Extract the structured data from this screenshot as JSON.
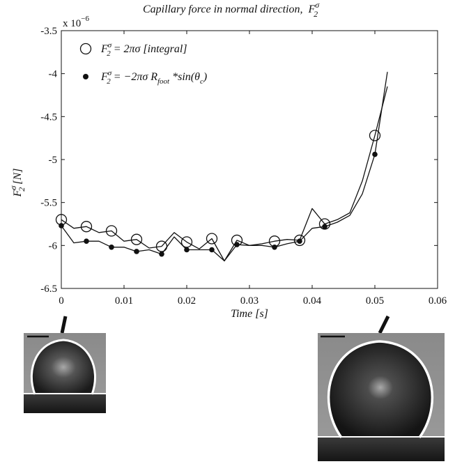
{
  "chart_data": {
    "type": "line",
    "title": "Capillary force in normal direction,",
    "title_symbol": {
      "main": "F",
      "sup": "σ",
      "sub": "2"
    },
    "xlabel": "Time [s]",
    "ylabel": {
      "main": "F",
      "sup": "σ",
      "sub": "2",
      "rest": " [N]"
    },
    "y_exponent": "x 10",
    "y_exponent_power": "−6",
    "xlim": [
      0,
      0.06
    ],
    "ylim": [
      -6.5,
      -3.5
    ],
    "x_ticks": [
      0,
      0.01,
      0.02,
      0.03,
      0.04,
      0.05,
      0.06
    ],
    "x_tick_labels": [
      "0",
      "0.01",
      "0.02",
      "0.03",
      "0.04",
      "0.05",
      "0.06"
    ],
    "y_ticks": [
      -6.5,
      -6,
      -5.5,
      -5,
      -4.5,
      -4,
      -3.5
    ],
    "y_tick_labels": [
      "-6.5",
      "-6",
      "-5.5",
      "-5",
      "-4.5",
      "-4",
      "-3.5"
    ],
    "grid": false,
    "legend_position": "top-left",
    "series": [
      {
        "name": "integral",
        "legend_text": {
          "lhs": "F",
          "sup": "σ",
          "sub": "2",
          "rhs": " = 2πσ [integral]"
        },
        "marker": "open-circle",
        "color": "#111111",
        "line_x": [
          0,
          0.002,
          0.004,
          0.006,
          0.008,
          0.01,
          0.012,
          0.014,
          0.016,
          0.018,
          0.02,
          0.022,
          0.024,
          0.026,
          0.028,
          0.03,
          0.032,
          0.034,
          0.036,
          0.038,
          0.04,
          0.042,
          0.044,
          0.046,
          0.048,
          0.05,
          0.052
        ],
        "line_y": [
          -5.7,
          -5.8,
          -5.78,
          -5.85,
          -5.83,
          -5.95,
          -5.93,
          -6.03,
          -6.01,
          -5.85,
          -5.96,
          -6.04,
          -5.92,
          -6.18,
          -5.94,
          -6.0,
          -5.98,
          -5.95,
          -5.93,
          -5.94,
          -5.57,
          -5.75,
          -5.7,
          -5.62,
          -5.25,
          -4.72,
          -4.15
        ],
        "marker_x": [
          0,
          0.004,
          0.008,
          0.012,
          0.016,
          0.02,
          0.024,
          0.028,
          0.034,
          0.038,
          0.042,
          0.05
        ],
        "marker_y": [
          -5.7,
          -5.78,
          -5.83,
          -5.93,
          -6.01,
          -5.96,
          -5.92,
          -5.94,
          -5.95,
          -5.94,
          -5.75,
          -4.72
        ]
      },
      {
        "name": "foot",
        "legend_text": {
          "lhs": "F",
          "sup": "σ",
          "sub": "2",
          "rhs_a": " = −2πσ R",
          "rsub": "foot",
          "rhs_b": " *sin(θ",
          "csub": "c",
          "rhs_c": ")"
        },
        "marker": "filled-dot",
        "color": "#111111",
        "line_x": [
          0,
          0.002,
          0.004,
          0.006,
          0.008,
          0.01,
          0.012,
          0.014,
          0.016,
          0.018,
          0.02,
          0.022,
          0.024,
          0.026,
          0.028,
          0.03,
          0.032,
          0.034,
          0.036,
          0.038,
          0.04,
          0.042,
          0.044,
          0.046,
          0.048,
          0.05,
          0.052
        ],
        "line_y": [
          -5.77,
          -5.97,
          -5.95,
          -5.95,
          -6.02,
          -6.02,
          -6.07,
          -6.05,
          -6.1,
          -5.9,
          -6.05,
          -6.05,
          -6.05,
          -6.18,
          -5.99,
          -6.0,
          -6.0,
          -6.02,
          -5.98,
          -5.95,
          -5.8,
          -5.78,
          -5.73,
          -5.65,
          -5.4,
          -4.94,
          -3.98
        ],
        "marker_x": [
          0,
          0.004,
          0.008,
          0.012,
          0.016,
          0.02,
          0.024,
          0.028,
          0.034,
          0.038,
          0.042,
          0.05
        ],
        "marker_y": [
          -5.77,
          -5.95,
          -6.02,
          -6.07,
          -6.1,
          -6.05,
          -6.05,
          -5.99,
          -6.02,
          -5.95,
          -5.78,
          -4.94
        ]
      }
    ],
    "insets": [
      {
        "position": "bottom-left",
        "label": "droplet at t = 0"
      },
      {
        "position": "bottom-right",
        "label": "droplet at t = 0.05"
      }
    ]
  }
}
